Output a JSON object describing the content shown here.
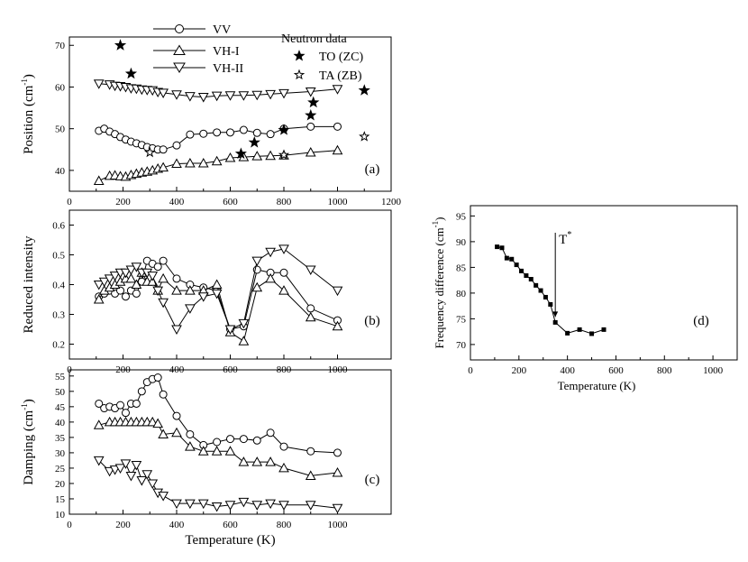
{
  "legend": {
    "series_entries": [
      "VV",
      "VH-I",
      "VH-II"
    ],
    "neutron_title": "Neutron data",
    "neutron_entries": [
      "TO (ZC)",
      "TA (ZB)"
    ]
  },
  "chart_data": [
    {
      "id": "a",
      "type": "scatter",
      "panel_label": "(a)",
      "xlabel": "",
      "ylabel": "Position (cm",
      "ylabel_sup": "-1",
      "ylabel_close": ")",
      "xlim": [
        0,
        1200
      ],
      "ylim": [
        35,
        72
      ],
      "xticks": [
        0,
        200,
        400,
        600,
        800,
        1000,
        1200
      ],
      "yticks": [
        40,
        50,
        60,
        70
      ],
      "series": [
        {
          "name": "VV",
          "marker": "circle",
          "line": true,
          "x": [
            110,
            130,
            150,
            170,
            190,
            210,
            230,
            250,
            270,
            290,
            310,
            330,
            350,
            400,
            450,
            500,
            550,
            600,
            650,
            700,
            750,
            800,
            900,
            1000
          ],
          "y": [
            49.5,
            50,
            49.3,
            48.7,
            48,
            47.4,
            46.9,
            46.5,
            46.1,
            45.6,
            45.3,
            45,
            45,
            46,
            48.6,
            48.8,
            49.1,
            49.1,
            49.7,
            49,
            48.7,
            50,
            50.5,
            50.5
          ]
        },
        {
          "name": "VH-I",
          "marker": "triangle-up",
          "line": true,
          "x": [
            110,
            150,
            170,
            190,
            210,
            230,
            250,
            270,
            290,
            310,
            330,
            350,
            400,
            450,
            500,
            550,
            600,
            650,
            700,
            750,
            800,
            900,
            1000
          ],
          "y": [
            37.5,
            38.7,
            38.8,
            38.6,
            38.5,
            38.9,
            39.2,
            39.5,
            39.7,
            40,
            40.4,
            40.7,
            41.6,
            41.7,
            41.7,
            42.2,
            43,
            43.2,
            43.4,
            43.5,
            43.6,
            44.3,
            44.8
          ]
        },
        {
          "name": "VH-II",
          "marker": "triangle-down",
          "line": true,
          "x": [
            110,
            150,
            170,
            190,
            210,
            230,
            250,
            270,
            290,
            310,
            330,
            350,
            400,
            450,
            500,
            550,
            600,
            650,
            700,
            750,
            800,
            900,
            1000
          ],
          "y": [
            60.8,
            60.6,
            60.3,
            60.2,
            60,
            59.7,
            59.6,
            59.4,
            59.3,
            59.2,
            58.8,
            58.6,
            58.2,
            57.8,
            57.6,
            57.9,
            58,
            58,
            58.1,
            58.3,
            58.5,
            58.9,
            59.5
          ]
        },
        {
          "name": "TO (ZC)",
          "marker": "star-filled",
          "line": false,
          "x": [
            190,
            230,
            640,
            690,
            800,
            900,
            910,
            1100
          ],
          "y": [
            70,
            63.2,
            44,
            46.7,
            49.7,
            53.2,
            56.3,
            59.2
          ]
        },
        {
          "name": "TA (ZB)",
          "marker": "star-open",
          "line": false,
          "x": [
            300,
            800,
            1100
          ],
          "y": [
            44.3,
            43.7,
            48.1
          ]
        }
      ]
    },
    {
      "id": "b",
      "type": "line",
      "panel_label": "(b)",
      "xlabel": "",
      "ylabel": "Reduced intensity",
      "xlim": [
        0,
        1200
      ],
      "ylim": [
        0.15,
        0.65
      ],
      "xticks": [
        0,
        200,
        400,
        600,
        800,
        1000
      ],
      "yticks": [
        0.2,
        0.3,
        0.4,
        0.5,
        0.6
      ],
      "series": [
        {
          "name": "VV",
          "marker": "circle",
          "x": [
            110,
            130,
            150,
            170,
            190,
            210,
            230,
            250,
            270,
            290,
            310,
            330,
            350,
            400,
            450,
            500,
            550,
            600,
            650,
            700,
            750,
            800,
            900,
            1000
          ],
          "y": [
            0.36,
            0.37,
            0.38,
            0.37,
            0.38,
            0.36,
            0.38,
            0.37,
            0.41,
            0.48,
            0.47,
            0.46,
            0.48,
            0.42,
            0.4,
            0.39,
            0.38,
            0.25,
            0.26,
            0.45,
            0.44,
            0.44,
            0.32,
            0.28
          ]
        },
        {
          "name": "VH-I",
          "marker": "triangle-up",
          "x": [
            110,
            130,
            150,
            170,
            190,
            210,
            230,
            250,
            270,
            290,
            310,
            330,
            350,
            400,
            450,
            500,
            550,
            600,
            650,
            700,
            750,
            800,
            900,
            1000
          ],
          "y": [
            0.35,
            0.38,
            0.39,
            0.4,
            0.41,
            0.42,
            0.42,
            0.4,
            0.44,
            0.41,
            0.41,
            0.38,
            0.42,
            0.38,
            0.38,
            0.38,
            0.4,
            0.24,
            0.21,
            0.39,
            0.42,
            0.38,
            0.29,
            0.26
          ]
        },
        {
          "name": "VH-II",
          "marker": "triangle-down",
          "x": [
            110,
            130,
            150,
            170,
            190,
            210,
            230,
            250,
            270,
            290,
            310,
            330,
            350,
            400,
            450,
            500,
            550,
            600,
            650,
            700,
            750,
            800,
            900,
            1000
          ],
          "y": [
            0.4,
            0.41,
            0.42,
            0.43,
            0.44,
            0.44,
            0.45,
            0.46,
            0.44,
            0.44,
            0.43,
            0.38,
            0.34,
            0.25,
            0.32,
            0.36,
            0.37,
            0.25,
            0.27,
            0.48,
            0.51,
            0.52,
            0.45,
            0.38
          ]
        }
      ]
    },
    {
      "id": "c",
      "type": "line",
      "panel_label": "(c)",
      "xlabel": "Temperature (K)",
      "ylabel": "Damping (cm",
      "ylabel_sup": "-1",
      "ylabel_close": ")",
      "xlim": [
        0,
        1200
      ],
      "ylim": [
        10,
        57
      ],
      "xticks": [
        0,
        200,
        400,
        600,
        800,
        1000
      ],
      "yticks": [
        10,
        15,
        20,
        25,
        30,
        35,
        40,
        45,
        50,
        55
      ],
      "series": [
        {
          "name": "VV",
          "marker": "circle",
          "x": [
            110,
            130,
            150,
            170,
            190,
            210,
            230,
            250,
            270,
            290,
            310,
            330,
            350,
            400,
            450,
            500,
            550,
            600,
            650,
            700,
            750,
            800,
            900,
            1000
          ],
          "y": [
            46,
            44.5,
            45,
            44.5,
            45.5,
            43,
            46,
            46,
            50,
            53,
            54,
            54.5,
            49,
            42,
            36,
            32.5,
            33.5,
            34.5,
            34.5,
            34,
            36.5,
            32,
            30.5,
            30
          ]
        },
        {
          "name": "VH-I",
          "marker": "triangle-up",
          "x": [
            110,
            150,
            170,
            190,
            210,
            230,
            250,
            270,
            290,
            310,
            330,
            350,
            400,
            450,
            500,
            550,
            600,
            650,
            700,
            750,
            800,
            900,
            1000
          ],
          "y": [
            39,
            40,
            40,
            40,
            40,
            40,
            40,
            40,
            40,
            40,
            39.5,
            36,
            36.5,
            32,
            30.5,
            30.5,
            30.5,
            27,
            27,
            27,
            25,
            22.5,
            23.5
          ]
        },
        {
          "name": "VH-II",
          "marker": "triangle-down",
          "x": [
            110,
            150,
            170,
            190,
            210,
            230,
            250,
            270,
            290,
            310,
            330,
            350,
            400,
            450,
            500,
            550,
            600,
            650,
            700,
            750,
            800,
            900,
            1000
          ],
          "y": [
            27.5,
            24,
            24.5,
            25,
            26.5,
            22.5,
            26,
            21,
            23,
            20,
            17,
            16,
            13.5,
            13.5,
            13.5,
            12.5,
            13,
            14,
            13,
            13.5,
            13,
            13,
            12
          ]
        }
      ]
    },
    {
      "id": "d",
      "type": "line",
      "panel_label": "(d)",
      "xlabel": "Temperature (K)",
      "ylabel": "Frequency difference (cm",
      "ylabel_sup": "-1",
      "ylabel_close": ")",
      "annotation": "T",
      "annotation_sup": "*",
      "annotation_x": 350,
      "xlim": [
        0,
        1100
      ],
      "ylim": [
        67,
        97
      ],
      "xticks": [
        0,
        200,
        400,
        600,
        800,
        1000
      ],
      "yticks": [
        70,
        75,
        80,
        85,
        90,
        95
      ],
      "series": [
        {
          "name": "Frequency difference",
          "marker": "square",
          "x": [
            110,
            130,
            150,
            170,
            190,
            210,
            230,
            250,
            270,
            290,
            310,
            330,
            350,
            400,
            450,
            500,
            550
          ],
          "y": [
            89,
            88.8,
            86.8,
            86.6,
            85.5,
            84.3,
            83.4,
            82.7,
            81.5,
            80.5,
            79.2,
            77.8,
            74.3,
            72.2,
            72.9,
            72.1,
            72.9
          ]
        }
      ]
    }
  ]
}
